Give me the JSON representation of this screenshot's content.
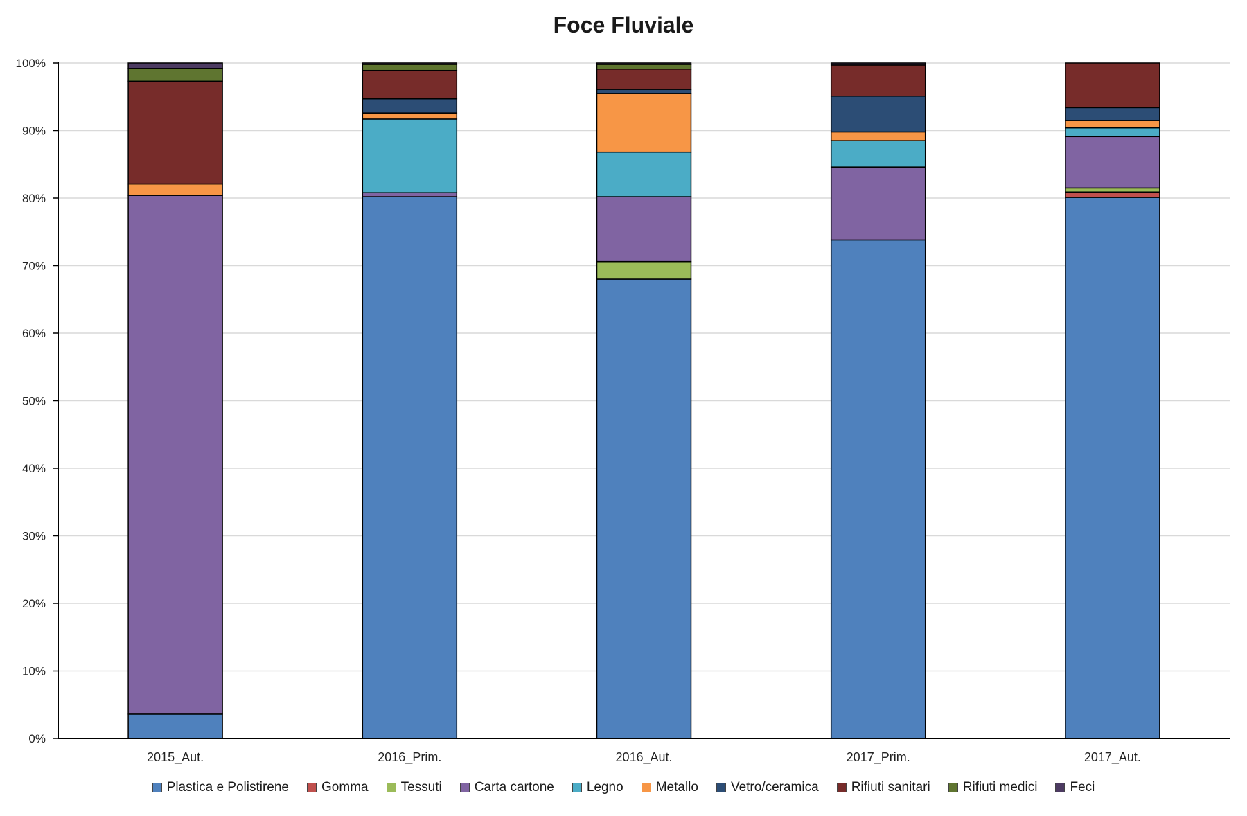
{
  "chart_data": {
    "type": "bar",
    "stacked": true,
    "title": "Foce Fluviale",
    "xlabel": "",
    "ylabel": "",
    "ylim": [
      0,
      100
    ],
    "yticks": [
      "0%",
      "10%",
      "20%",
      "30%",
      "40%",
      "50%",
      "60%",
      "70%",
      "80%",
      "90%",
      "100%"
    ],
    "grid": true,
    "legend_position": "bottom",
    "categories": [
      "2015_Aut.",
      "2016_Prim.",
      "2016_Aut.",
      "2017_Prim.",
      "2017_Aut."
    ],
    "series": [
      {
        "name": "Plastica e Polistirene",
        "color": "#4f81bd",
        "values": [
          3.6,
          80.2,
          68.0,
          73.8,
          80.1
        ]
      },
      {
        "name": "Gomma",
        "color": "#c0504d",
        "values": [
          0.0,
          0.0,
          0.0,
          0.0,
          0.8
        ]
      },
      {
        "name": "Tessuti",
        "color": "#9bbb59",
        "values": [
          0.0,
          0.0,
          2.6,
          0.0,
          0.6
        ]
      },
      {
        "name": "Carta cartone",
        "color": "#8064a2",
        "values": [
          76.8,
          0.6,
          9.6,
          10.8,
          7.6
        ]
      },
      {
        "name": "Legno",
        "color": "#4bacc6",
        "values": [
          0.0,
          10.9,
          6.6,
          3.9,
          1.3
        ]
      },
      {
        "name": "Metallo",
        "color": "#f79646",
        "values": [
          1.7,
          0.9,
          8.7,
          1.3,
          1.1
        ]
      },
      {
        "name": "Vetro/ceramica",
        "color": "#2c4d75",
        "values": [
          0.0,
          2.1,
          0.6,
          5.3,
          1.9
        ]
      },
      {
        "name": "Rifiuti sanitari",
        "color": "#772c2a",
        "values": [
          15.2,
          4.2,
          3.0,
          4.6,
          6.6
        ]
      },
      {
        "name": "Rifiuti medici",
        "color": "#5f7530",
        "values": [
          1.9,
          0.9,
          0.7,
          0.0,
          0.0
        ]
      },
      {
        "name": "Feci",
        "color": "#4d3b62",
        "values": [
          0.8,
          0.2,
          0.2,
          0.3,
          0.0
        ]
      }
    ]
  }
}
